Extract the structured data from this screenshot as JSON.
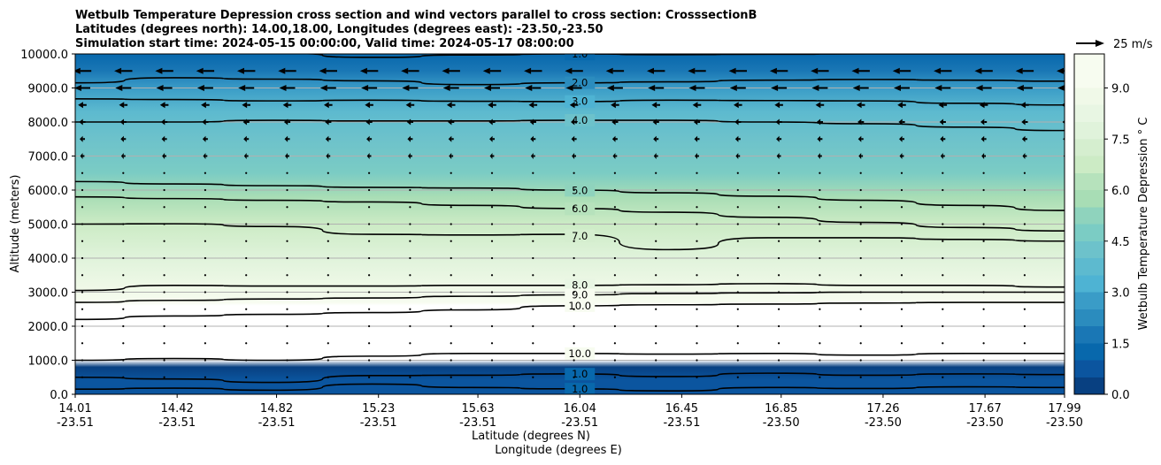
{
  "chart_data": {
    "type": "contour",
    "title_lines": [
      "Wetbulb Temperature Depression cross section and wind vectors parallel to cross section: CrosssectionB",
      "Latitudes (degrees north): 14.00,18.00, Longitudes (degrees east): -23.50,-23.50",
      "Simulation start time: 2024-05-15 00:00:00, Valid time: 2024-05-17 08:00:00"
    ],
    "ylabel": "Altitude (meters)",
    "xlabel_lat": "Latitude (degrees N)",
    "xlabel_lon": "Longitude (degrees E)",
    "ylim": [
      0,
      10000
    ],
    "xlim": [
      14.01,
      17.99
    ],
    "yticks": [
      "0.0",
      "1000.0",
      "2000.0",
      "3000.0",
      "4000.0",
      "5000.0",
      "6000.0",
      "7000.0",
      "8000.0",
      "9000.0",
      "10000.0"
    ],
    "xticks": [
      {
        "lat": "14.01",
        "lon": "-23.51",
        "v": 14.01
      },
      {
        "lat": "14.42",
        "lon": "-23.51",
        "v": 14.42
      },
      {
        "lat": "14.82",
        "lon": "-23.51",
        "v": 14.82
      },
      {
        "lat": "15.23",
        "lon": "-23.51",
        "v": 15.23
      },
      {
        "lat": "15.63",
        "lon": "-23.51",
        "v": 15.63
      },
      {
        "lat": "16.04",
        "lon": "-23.51",
        "v": 16.04
      },
      {
        "lat": "16.45",
        "lon": "-23.51",
        "v": 16.45
      },
      {
        "lat": "16.85",
        "lon": "-23.50",
        "v": 16.85
      },
      {
        "lat": "17.26",
        "lon": "-23.50",
        "v": 17.26
      },
      {
        "lat": "17.67",
        "lon": "-23.50",
        "v": 17.67
      },
      {
        "lat": "17.99",
        "lon": "-23.50",
        "v": 17.99
      }
    ],
    "colorbar": {
      "label": "Wetbulb Temperature Depression $^\\circ$C",
      "label_text": "Wetbulb Temperature Depression ° C",
      "range": [
        0,
        10
      ],
      "ticks": [
        "0.0",
        "1.5",
        "3.0",
        "4.5",
        "6.0",
        "7.5",
        "9.0"
      ],
      "colors": [
        "#084081",
        "#0b559f",
        "#0868ac",
        "#1a77b5",
        "#2b8cbe",
        "#3a9cc7",
        "#4eb3d3",
        "#5dbacf",
        "#6dc2cb",
        "#7bccc4",
        "#8fd3bd",
        "#a8ddb5",
        "#b6e2bc",
        "#ccebc5",
        "#d5eecf",
        "#e0f3db",
        "#e8f6e3",
        "#f0f9e8",
        "#f7fcf0",
        "#f7fcf0"
      ]
    },
    "quiver_key": "25 m/s",
    "quiver_key_speed": 25,
    "background_profile": [
      {
        "alt": 0,
        "value": 0.5
      },
      {
        "alt": 400,
        "value": 0.8
      },
      {
        "alt": 800,
        "value": 0.3
      },
      {
        "alt": 1000,
        "value": 10.5
      },
      {
        "alt": 2600,
        "value": 10.5
      },
      {
        "alt": 2700,
        "value": 9.8
      },
      {
        "alt": 3100,
        "value": 8.5
      },
      {
        "alt": 4000,
        "value": 7.6
      },
      {
        "alt": 5000,
        "value": 6.8
      },
      {
        "alt": 5800,
        "value": 5.8
      },
      {
        "alt": 6500,
        "value": 4.7
      },
      {
        "alt": 7500,
        "value": 4.3
      },
      {
        "alt": 8300,
        "value": 3.6
      },
      {
        "alt": 9000,
        "value": 2.5
      },
      {
        "alt": 9500,
        "value": 1.6
      },
      {
        "alt": 10000,
        "value": 1.0
      }
    ],
    "contours": [
      {
        "level": "1.0",
        "alts": [
          10050,
          10050,
          10020,
          9900,
          9970,
          10000,
          9980,
          9990,
          10000,
          10000,
          10000
        ],
        "label_at": 16.04
      },
      {
        "level": "2.0",
        "alts": [
          9150,
          9300,
          9260,
          9210,
          9100,
          9150,
          9180,
          9230,
          9250,
          9230,
          9200
        ],
        "label_at": 16.04
      },
      {
        "level": "3.0",
        "alts": [
          8680,
          8660,
          8620,
          8640,
          8610,
          8600,
          8640,
          8630,
          8620,
          8550,
          8500
        ],
        "label_at": 16.04
      },
      {
        "level": "4.0",
        "alts": [
          8000,
          8000,
          8050,
          8030,
          8030,
          8050,
          8050,
          8000,
          7950,
          7850,
          7750
        ],
        "label_at": 16.04
      },
      {
        "level": "5.0",
        "alts": [
          6250,
          6180,
          6130,
          6080,
          6060,
          6000,
          5920,
          5820,
          5700,
          5550,
          5400
        ],
        "label_at": 16.04
      },
      {
        "level": "6.0",
        "alts": [
          5800,
          5750,
          5700,
          5650,
          5550,
          5460,
          5350,
          5200,
          5050,
          4900,
          4800
        ],
        "label_at": 16.04
      },
      {
        "level": "7.0",
        "alts": [
          5000,
          5010,
          4930,
          4700,
          4680,
          4700,
          4250,
          4600,
          4600,
          4550,
          4500
        ],
        "label_at": 16.04
      },
      {
        "level": "8.0",
        "alts": [
          3050,
          3200,
          3180,
          3180,
          3200,
          3200,
          3220,
          3250,
          3200,
          3200,
          3150
        ],
        "label_at": 16.04
      },
      {
        "level": "9.0",
        "alts": [
          2700,
          2760,
          2800,
          2830,
          2880,
          2920,
          2960,
          2980,
          3000,
          3000,
          3000
        ],
        "label_at": 16.04
      },
      {
        "level": "10.0",
        "alts": [
          2200,
          2300,
          2350,
          2400,
          2480,
          2600,
          2630,
          2650,
          2680,
          2700,
          2700
        ],
        "label_at": 16.04
      },
      {
        "level": "10.0",
        "alts": [
          1000,
          1050,
          1000,
          1120,
          1200,
          1200,
          1180,
          1200,
          1150,
          1200,
          1200
        ],
        "label_at": 16.04
      },
      {
        "level": "1.0",
        "alts": [
          500,
          450,
          350,
          550,
          560,
          600,
          520,
          620,
          560,
          600,
          580
        ],
        "label_at": 16.04
      },
      {
        "level": "1.0",
        "alts": [
          150,
          180,
          120,
          300,
          200,
          160,
          100,
          200,
          170,
          220,
          200
        ],
        "label_at": 16.04
      }
    ],
    "wind_u": [
      {
        "alt": 9500,
        "u": -17
      },
      {
        "alt": 9000,
        "u": -15
      },
      {
        "alt": 8500,
        "u": -8
      },
      {
        "alt": 8000,
        "u": -6
      },
      {
        "alt": 7500,
        "u": -5
      },
      {
        "alt": 7000,
        "u": -4
      },
      {
        "alt": 6500,
        "u": -2
      },
      {
        "alt": 6000,
        "u": -0.5
      },
      {
        "alt": 5500,
        "u": -0.5
      },
      {
        "alt": 5000,
        "u": -0.8
      },
      {
        "alt": 4500,
        "u": -1
      },
      {
        "alt": 4000,
        "u": -1
      },
      {
        "alt": 3500,
        "u": -0.5
      },
      {
        "alt": 3000,
        "u": -0.5
      },
      {
        "alt": 2500,
        "u": -0.3
      },
      {
        "alt": 2000,
        "u": -0.3
      },
      {
        "alt": 1500,
        "u": -0.3
      },
      {
        "alt": 1000,
        "u": -0.5
      },
      {
        "alt": 500,
        "u": -2
      }
    ]
  }
}
